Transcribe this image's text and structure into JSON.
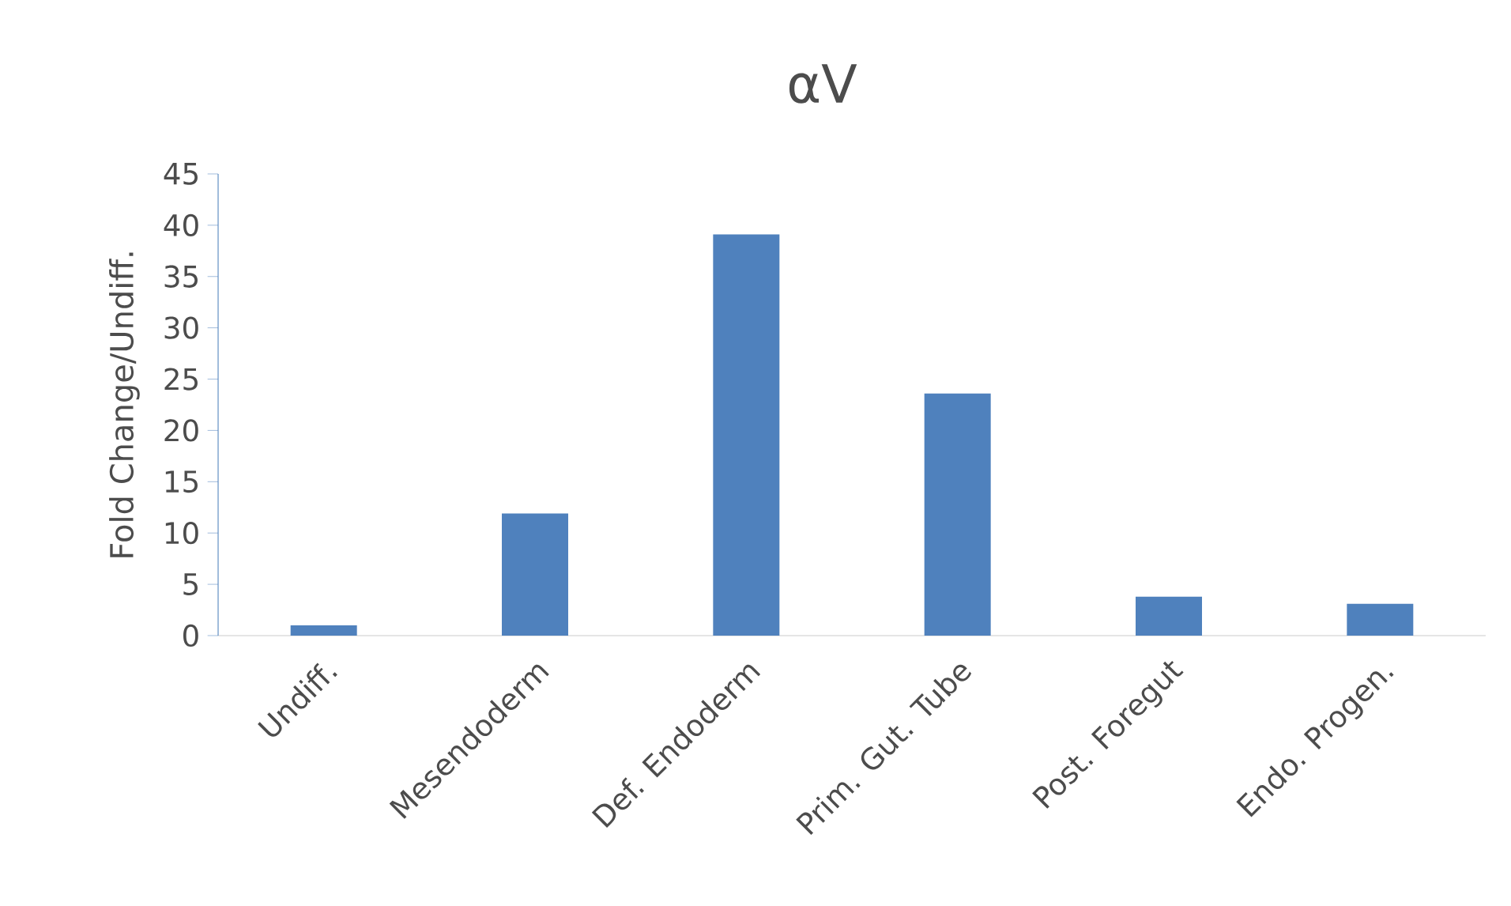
{
  "chart_data": {
    "type": "bar",
    "title": "αV",
    "ylabel": "Fold Change/Undiff.",
    "categories": [
      "Undiff.",
      "Mesendoderm",
      "Def. Endoderm",
      "Prim. Gut. Tube",
      "Post. Foregut",
      "Endo. Progen."
    ],
    "values": [
      1.0,
      11.9,
      39.1,
      23.6,
      3.8,
      3.1
    ],
    "color": "#4f81bd",
    "ylim": [
      0,
      45
    ],
    "yticks": [
      0,
      5,
      10,
      15,
      20,
      25,
      30,
      35,
      40,
      45
    ]
  }
}
